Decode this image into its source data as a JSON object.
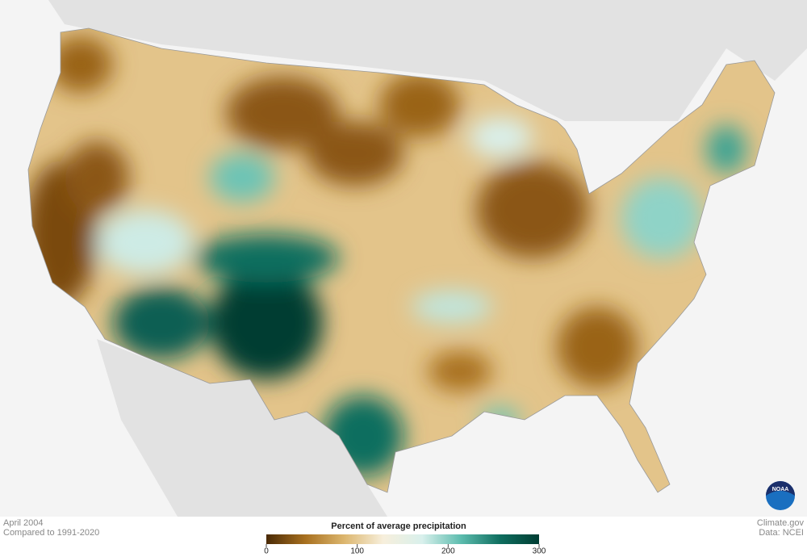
{
  "header": {
    "date": "April 2004",
    "baseline": "Compared to 1991-2020"
  },
  "legend": {
    "title": "Percent of average precipitation",
    "lim": [
      0,
      300
    ],
    "ticks": [
      0,
      100,
      200,
      300
    ],
    "colors": [
      "#4a2a06",
      "#a8701f",
      "#dcb66e",
      "#f7efdc",
      "#d9f0ec",
      "#5cbcae",
      "#0f6e5f",
      "#003d33"
    ]
  },
  "credits": {
    "site": "Climate.gov",
    "source": "Data: NCEI",
    "logo": "NOAA"
  }
}
